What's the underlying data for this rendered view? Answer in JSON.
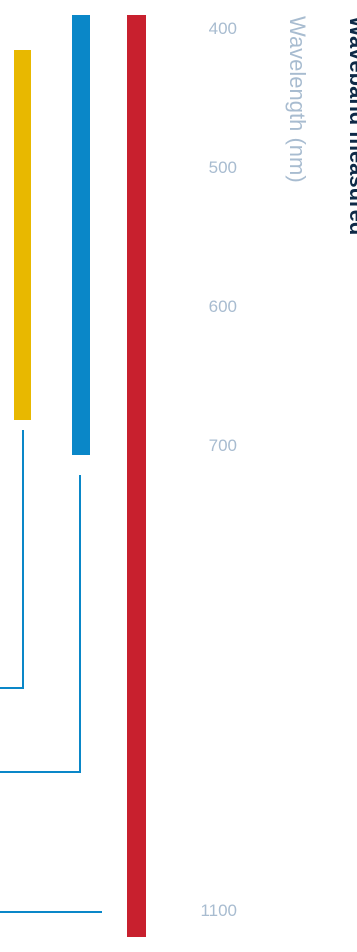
{
  "chart_data": {
    "type": "bar",
    "orientation": "vertical-range",
    "title": "Waveband measured",
    "axis_label": "Wavelength (nm)",
    "ticks": [
      400,
      500,
      600,
      700,
      1100
    ],
    "ylim": [
      385,
      1115
    ],
    "series": [
      {
        "color": "#e8b800",
        "range": [
          420,
          680
        ]
      },
      {
        "color": "#0a87c8",
        "range": [
          400,
          710
        ]
      },
      {
        "color": "#c8202e",
        "range": [
          400,
          1110
        ]
      }
    ],
    "connector_levels": [
      790,
      885,
      1100
    ],
    "colors": {
      "title": "#0e2a47",
      "axis_label": "#a8bcd0",
      "ticks": "#a8bcd0",
      "connector": "#0a87c8"
    }
  }
}
